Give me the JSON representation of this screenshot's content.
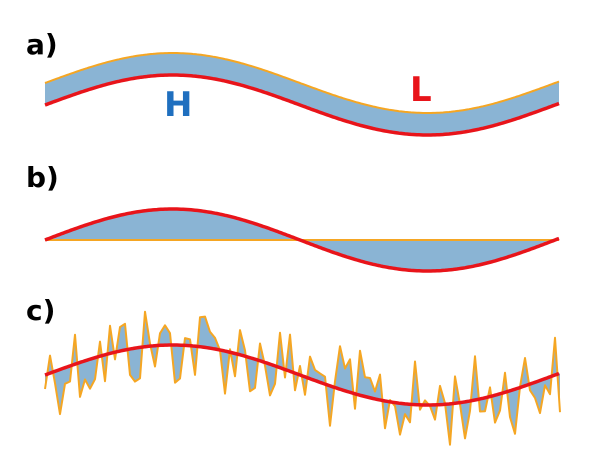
{
  "panels": [
    {
      "label": "a)",
      "annotations": [
        "H",
        "L"
      ]
    },
    {
      "label": "b)"
    },
    {
      "label": "c)"
    }
  ]
}
